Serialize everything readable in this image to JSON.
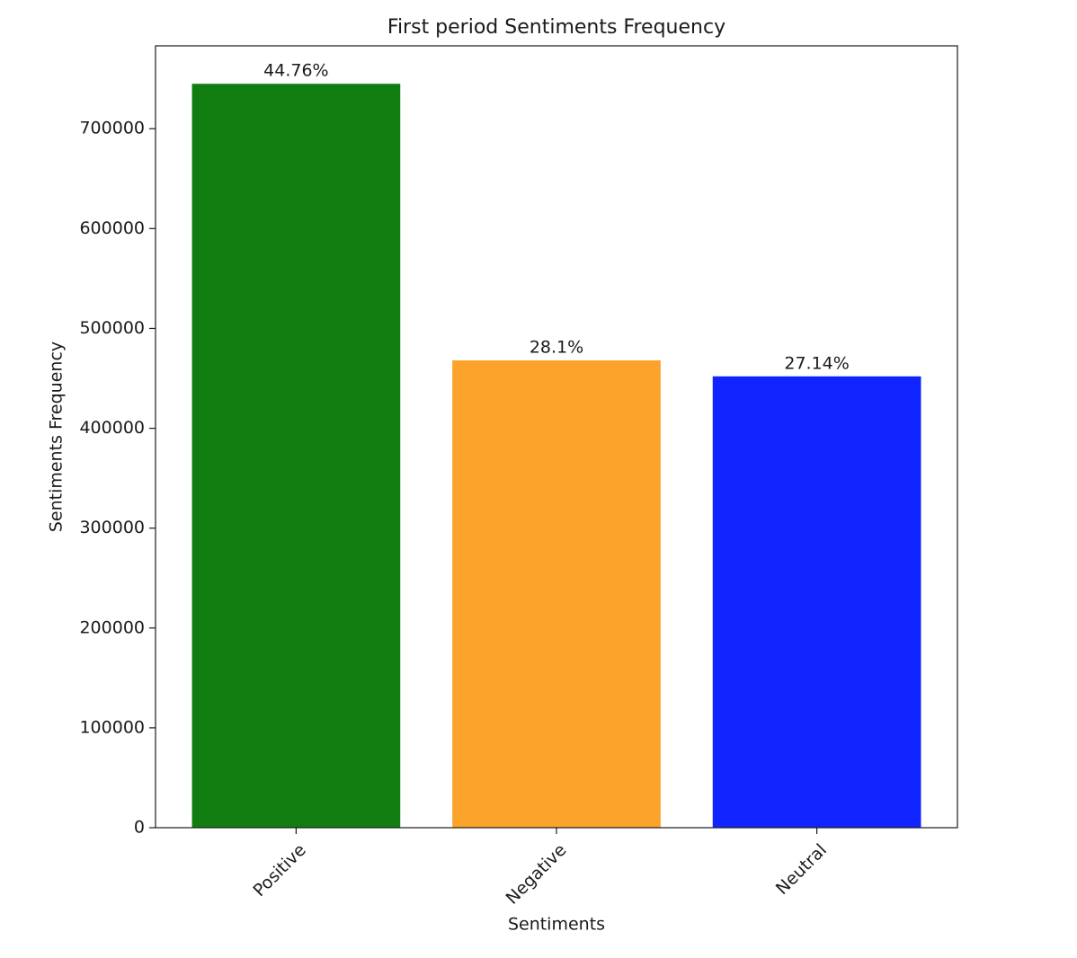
{
  "chart_data": {
    "type": "bar",
    "title": "First period Sentiments Frequency",
    "x_label": "Sentiments",
    "y_label": "Sentiments Frequency",
    "categories": [
      "Positive",
      "Negative",
      "Neutral"
    ],
    "values": [
      745000,
      468000,
      452000
    ],
    "colors": [
      "#117d11",
      "#fba32a",
      "#0f24ff"
    ],
    "annotations": [
      "44.76%",
      "28.1%",
      "27.14%"
    ],
    "ylim": [
      0,
      783000
    ],
    "yticks": [
      0,
      100000,
      200000,
      300000,
      400000,
      500000,
      600000,
      700000
    ],
    "grid": false
  }
}
